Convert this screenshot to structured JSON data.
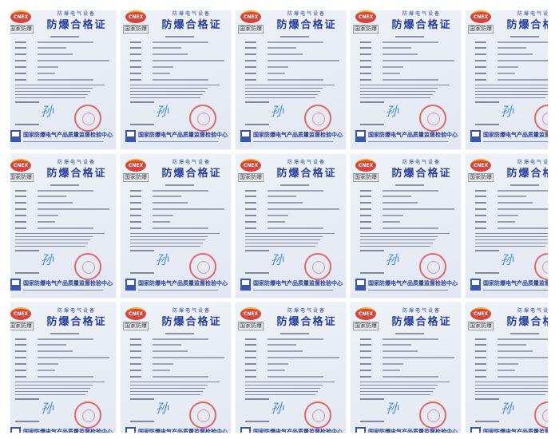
{
  "certificate": {
    "logo_text": "CNEX",
    "logo_caption": "国家防爆",
    "category": "防爆电气设备",
    "title": "防爆合格证",
    "signature": "孙",
    "issuer": "国家防爆电气产品质量监督检验中心",
    "colors": {
      "title": "#2a3f9a",
      "stamp": "#dc3c3c",
      "logo": "#d9443a",
      "signature": "#4a8fd8"
    }
  },
  "grid": {
    "columns": 5,
    "rows": 3
  }
}
